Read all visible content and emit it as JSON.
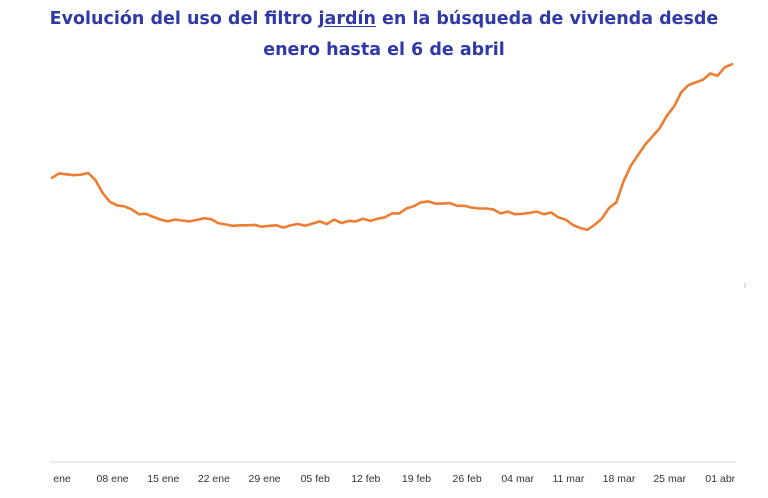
{
  "title": {
    "part1": "Evolución del uso del filtro ",
    "underlined": "jardín",
    "part2": " en la búsqueda de vivienda desde",
    "line2": "enero hasta el 6 de abril"
  },
  "chart_data": {
    "type": "line",
    "title": "Evolución del uso del filtro jardín en la búsqueda de vivienda desde enero hasta el 6 de abril",
    "xlabel": "",
    "ylabel": "",
    "x_tick_labels": [
      "ene",
      "08 ene",
      "15 ene",
      "22 ene",
      "29 ene",
      "05 feb",
      "12 feb",
      "19 feb",
      "26 feb",
      "04 mar",
      "11 mar",
      "18 mar",
      "25 mar",
      "01 abr"
    ],
    "x_start": "01 ene",
    "x_end": "06 abr",
    "ylim": [
      0,
      100
    ],
    "grid": false,
    "legend": "none",
    "series": [
      {
        "color": "#ed7d31",
        "values": [
          64,
          65,
          64.8,
          64.6,
          64.7,
          65.1,
          63.5,
          60.6,
          58.6,
          57.8,
          57.6,
          56.9,
          55.8,
          55.9,
          55.2,
          54.6,
          54.2,
          54.6,
          54.4,
          54.2,
          54.5,
          54.9,
          54.7,
          53.8,
          53.5,
          53.2,
          53.3,
          53.3,
          53.4,
          53,
          53.2,
          53.3,
          52.8,
          53.3,
          53.6,
          53.2,
          53.7,
          54.2,
          53.6,
          54.6,
          53.8,
          54.3,
          54.2,
          54.8,
          54.3,
          54.8,
          55.1,
          56,
          56,
          57.1,
          57.6,
          58.5,
          58.7,
          58.2,
          58.2,
          58.3,
          57.7,
          57.7,
          57.3,
          57.1,
          57.1,
          56.9,
          56,
          56.4,
          55.8,
          55.9,
          56.1,
          56.4,
          55.8,
          56.2,
          55.1,
          54.6,
          53.4,
          52.7,
          52.3,
          53.4,
          54.8,
          57.2,
          58.5,
          63.2,
          66.7,
          69.1,
          71.5,
          73.3,
          75.2,
          78,
          80.1,
          83.3,
          84.9,
          85.5,
          86.1,
          87.5,
          87,
          88.9,
          89.6
        ]
      }
    ]
  },
  "style": {
    "title_color": "#2f3aa8",
    "axis_color": "#d9d9d9",
    "tick_label_color": "#333333"
  }
}
